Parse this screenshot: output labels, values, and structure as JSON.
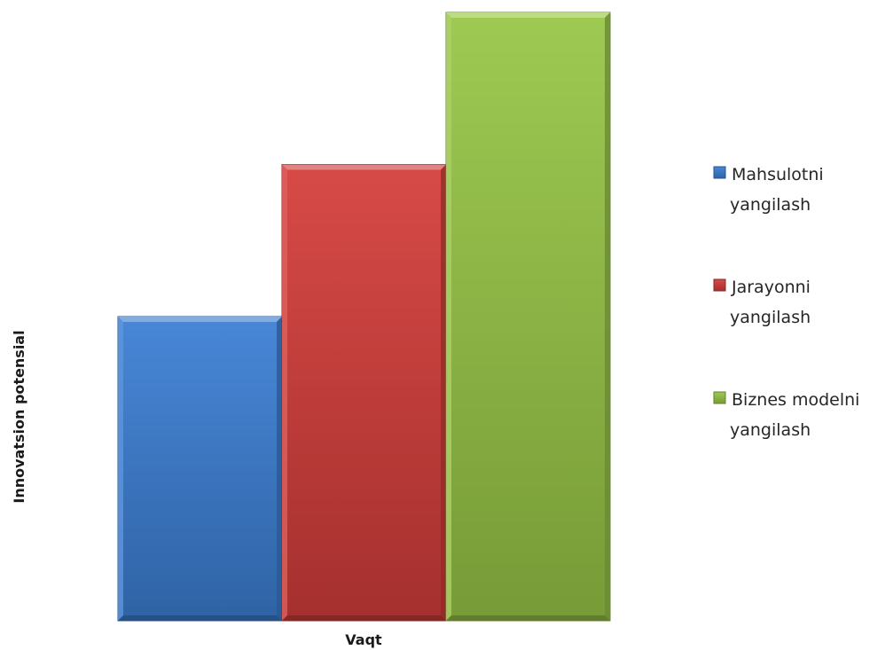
{
  "chart_data": {
    "type": "bar",
    "title": "",
    "xlabel": "Vaqt",
    "ylabel": "Innovatsion potensial",
    "categories": [
      ""
    ],
    "ylim": [
      0,
      4
    ],
    "grid": false,
    "legend_position": "right",
    "series": [
      {
        "name": "Mahsulotni yangilash",
        "legend_lines": [
          "Mahsulotni",
          "yangilash"
        ],
        "values": [
          2
        ],
        "color": "#3c7fd4"
      },
      {
        "name": "Jarayonni yangilash",
        "legend_lines": [
          "Jarayonni",
          "yangilash"
        ],
        "values": [
          3
        ],
        "color": "#d43e3b"
      },
      {
        "name": "Biznes modelni yangilash",
        "legend_lines": [
          "Biznes modelni",
          "yangilash"
        ],
        "values": [
          4
        ],
        "color": "#98c747"
      }
    ]
  }
}
